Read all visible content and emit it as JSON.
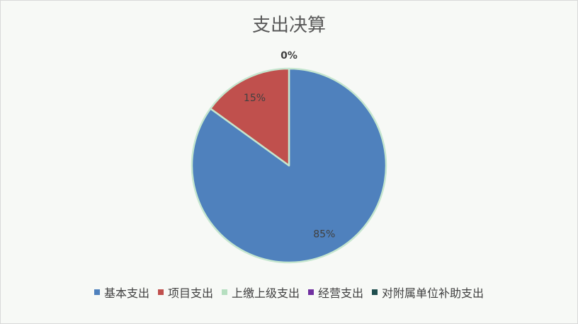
{
  "chart_data": {
    "type": "pie",
    "title": "支出决算",
    "categories": [
      "基本支出",
      "项目支出",
      "上缴上级支出",
      "经营支出",
      "对附属单位补助支出"
    ],
    "values": [
      85,
      15,
      0,
      0,
      0
    ],
    "data_labels": [
      "85%",
      "15%",
      "0%",
      "",
      ""
    ],
    "colors": [
      "#4f81bd",
      "#c0504d",
      "#b6dfc0",
      "#7030a0",
      "#1f4e4e"
    ],
    "slice_border_color": "#c5e6cf",
    "legend_position": "bottom"
  }
}
